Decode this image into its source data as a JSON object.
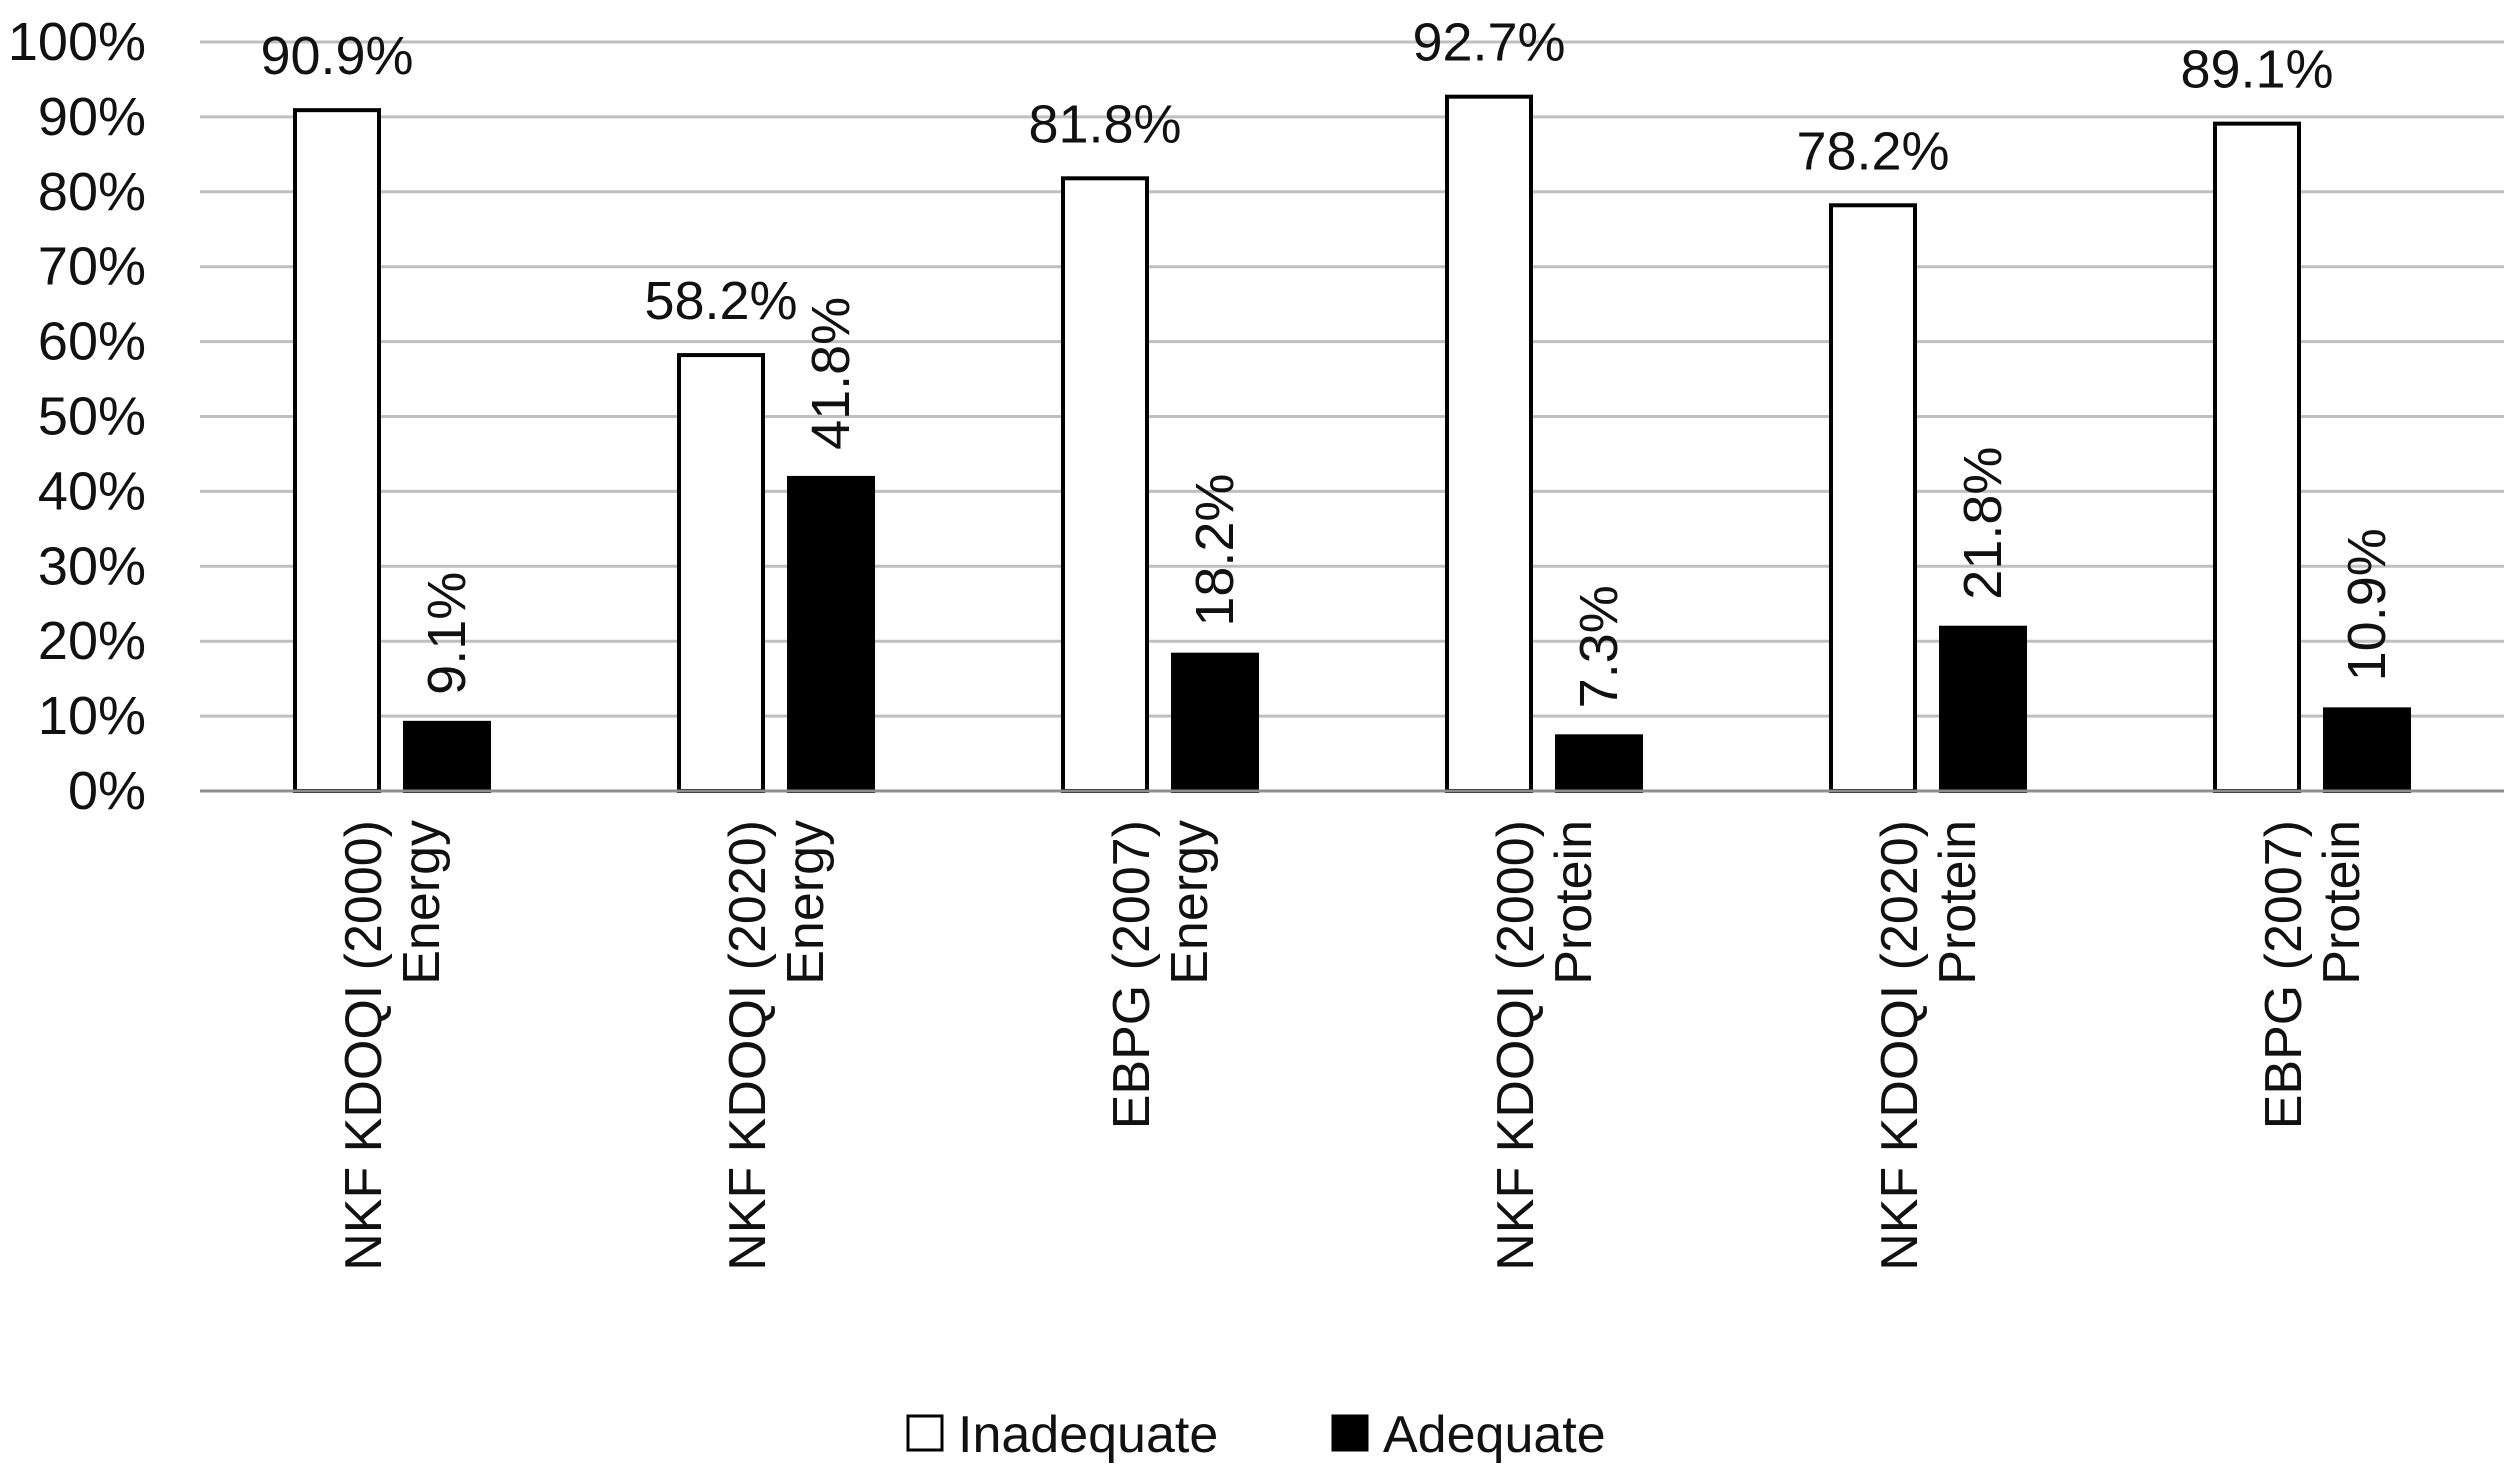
{
  "chart_data": {
    "type": "bar",
    "title": "",
    "xlabel": "",
    "ylabel": "",
    "ylim": [
      0,
      100
    ],
    "y_ticks": [
      "0%",
      "10%",
      "20%",
      "30%",
      "40%",
      "50%",
      "60%",
      "70%",
      "80%",
      "90%",
      "100%"
    ],
    "categories": [
      [
        "NKF KDOQI (2000)",
        "Energy"
      ],
      [
        "NKF KDOQI (2020)",
        "Energy"
      ],
      [
        "EBPG (2007)",
        "Energy"
      ],
      [
        "NKF KDOQI (2000)",
        "Protein"
      ],
      [
        "NKF KDOQI (2020)",
        "Protein"
      ],
      [
        "EBPG (2007)",
        "Protein"
      ]
    ],
    "series": [
      {
        "name": "Inadequate",
        "values": [
          90.9,
          58.2,
          81.8,
          92.7,
          78.2,
          89.1
        ],
        "labels": [
          "90.9%",
          "58.2%",
          "81.8%",
          "92.7%",
          "78.2%",
          "89.1%"
        ],
        "color": "#ffffff",
        "stroke": "#000000"
      },
      {
        "name": "Adequate",
        "values": [
          9.1,
          41.8,
          18.2,
          7.3,
          21.8,
          10.9
        ],
        "labels": [
          "9.1%",
          "41.8%",
          "18.2%",
          "7.3%",
          "21.8%",
          "10.9%"
        ],
        "color": "#000000",
        "stroke": "#000000"
      }
    ],
    "gridlines": true,
    "gridline_color": "#bfbfbf",
    "legend_position": "bottom"
  }
}
